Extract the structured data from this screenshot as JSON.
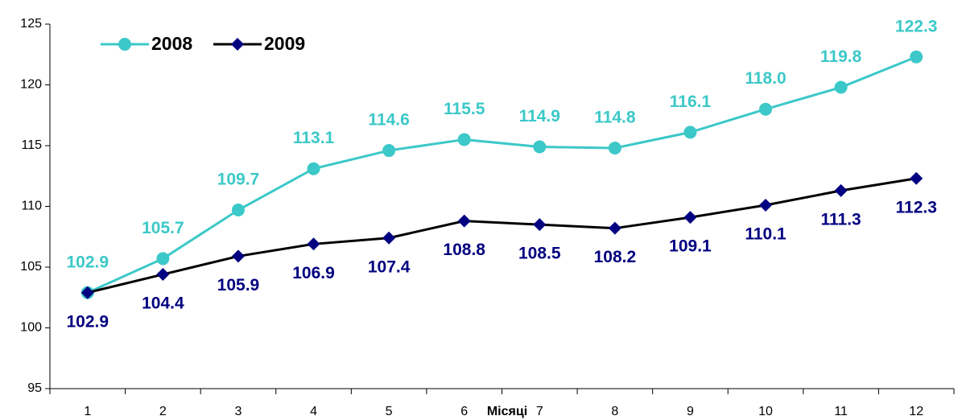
{
  "chart_data": {
    "type": "line",
    "x_label": "Місяці",
    "categories": [
      "1",
      "2",
      "3",
      "4",
      "5",
      "6",
      "7",
      "8",
      "9",
      "10",
      "11",
      "12"
    ],
    "series": [
      {
        "name": "2008",
        "color": "#3cc8c8",
        "marker": "circle",
        "values": [
          102.9,
          105.7,
          109.7,
          113.1,
          114.6,
          115.5,
          114.9,
          114.8,
          116.1,
          118.0,
          119.8,
          122.3
        ],
        "value_labels": [
          "102.9",
          "105.7",
          "109.7",
          "113.1",
          "114.6",
          "115.5",
          "114.9",
          "114.8",
          "116.1",
          "118.0",
          "119.8",
          "122.3"
        ]
      },
      {
        "name": "2009",
        "color": "#000000",
        "marker_color": "#000080",
        "label_color": "#000080",
        "marker": "diamond",
        "values": [
          102.9,
          104.4,
          105.9,
          106.9,
          107.4,
          108.8,
          108.5,
          108.2,
          109.1,
          110.1,
          111.3,
          112.3
        ]
      }
    ],
    "ylim": [
      95,
      125
    ],
    "yticks": [
      95,
      100,
      105,
      110,
      115,
      120,
      125
    ],
    "grid": false,
    "legend": "top-left"
  }
}
